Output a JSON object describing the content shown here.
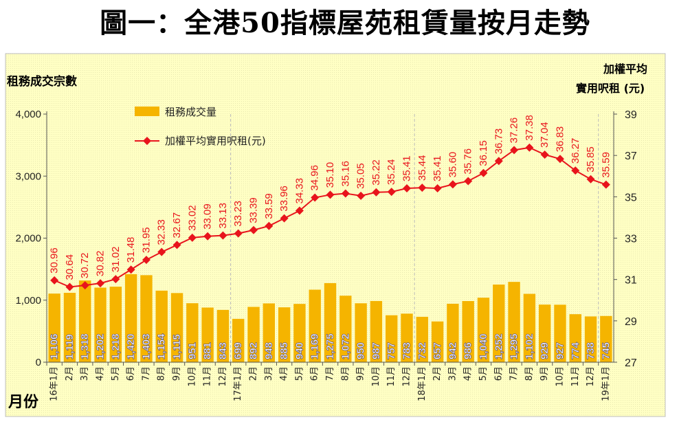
{
  "title": "圖一：全港50指標屋苑租賃量按月走勢",
  "chart_data": {
    "type": "bar+line",
    "ylabel_left": "租務成交宗數",
    "ylabel_right_line1": "加權平均",
    "ylabel_right_line2": "實用呎租 (元)",
    "xlabel": "月份",
    "left_ticks": [
      "0",
      "1,000",
      "2,000",
      "3,000",
      "4,000"
    ],
    "left_ylim": [
      0,
      4000
    ],
    "right_ticks": [
      "27",
      "29",
      "31",
      "33",
      "35",
      "37",
      "39"
    ],
    "right_ylim": [
      27,
      39
    ],
    "categories": [
      "16年1月",
      "2月",
      "3月",
      "4月",
      "5月",
      "6月",
      "7月",
      "8月",
      "9月",
      "10月",
      "11月",
      "12月",
      "17年1月",
      "2月",
      "3月",
      "4月",
      "5月",
      "6月",
      "7月",
      "8月",
      "9月",
      "10月",
      "11月",
      "12月",
      "18年1月",
      "2月",
      "3月",
      "4月",
      "5月",
      "6月",
      "7月",
      "8月",
      "9月",
      "10月",
      "11月",
      "12月",
      "19年1月"
    ],
    "series": [
      {
        "name": "租務成交量",
        "type": "bar",
        "color": "#F5B400",
        "values": [
          1106,
          1119,
          1318,
          1202,
          1218,
          1420,
          1403,
          1154,
          1115,
          951,
          881,
          843,
          699,
          892,
          948,
          885,
          940,
          1169,
          1275,
          1072,
          950,
          987,
          757,
          783,
          732,
          657,
          942,
          986,
          1040,
          1252,
          1295,
          1102,
          929,
          927,
          774,
          738,
          745
        ],
        "labels": [
          "1,106",
          "1,119",
          "1,318",
          "1,202",
          "1,218",
          "1,420",
          "1,403",
          "1,154",
          "1,115",
          "951",
          "881",
          "843",
          "699",
          "892",
          "948",
          "885",
          "940",
          "1,169",
          "1,275",
          "1,072",
          "950",
          "987",
          "757",
          "783",
          "732",
          "657",
          "942",
          "986",
          "1,040",
          "1,252",
          "1,295",
          "1,102",
          "929",
          "927",
          "774",
          "738",
          "745"
        ]
      },
      {
        "name": "加權平均實用呎租(元)",
        "type": "line",
        "color": "#E8141C",
        "values": [
          30.96,
          30.64,
          30.72,
          30.82,
          31.02,
          31.48,
          31.95,
          32.33,
          32.67,
          33.02,
          33.09,
          33.13,
          33.23,
          33.39,
          33.59,
          33.96,
          34.33,
          34.96,
          35.1,
          35.16,
          35.05,
          35.22,
          35.24,
          35.41,
          35.44,
          35.41,
          35.6,
          35.76,
          36.15,
          36.73,
          37.26,
          37.38,
          37.04,
          36.83,
          36.27,
          35.85,
          35.59
        ],
        "labels": [
          "30.96",
          "30.64",
          "30.72",
          "30.82",
          "31.02",
          "31.48",
          "31.95",
          "32.33",
          "32.67",
          "33.02",
          "33.09",
          "33.13",
          "33.23",
          "33.39",
          "33.59",
          "33.96",
          "34.33",
          "34.96",
          "35.10",
          "35.16",
          "35.05",
          "35.22",
          "35.24",
          "35.41",
          "35.44",
          "35.41",
          "35.60",
          "35.76",
          "36.15",
          "36.73",
          "37.26",
          "37.38",
          "37.04",
          "36.83",
          "36.27",
          "35.85",
          "35.59"
        ]
      }
    ],
    "colors": {
      "background": "#FFFFC8",
      "border": "#BDBDBD",
      "grid": "#BBBBBB"
    }
  }
}
